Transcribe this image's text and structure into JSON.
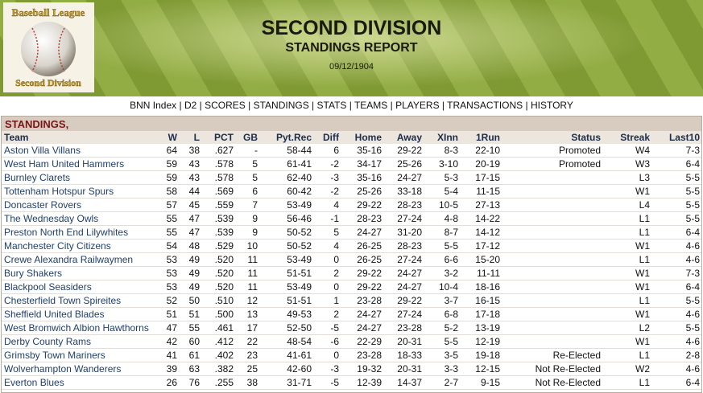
{
  "header": {
    "title": "SECOND DIVISION",
    "subtitle": "STANDINGS REPORT",
    "date": "09/12/1904"
  },
  "logo": {
    "top": "Baseball League",
    "bottom": "Second Division"
  },
  "nav": [
    "BNN Index",
    "D2",
    "SCORES",
    "STANDINGS",
    "STATS",
    "TEAMS",
    "PLAYERS",
    "TRANSACTIONS",
    "HISTORY"
  ],
  "table": {
    "title": "STANDINGS,",
    "columns": [
      "Team",
      "W",
      "L",
      "PCT",
      "GB",
      "Pyt.Rec",
      "Diff",
      "Home",
      "Away",
      "XInn",
      "1Run",
      "Status",
      "Streak",
      "Last10"
    ],
    "rows": [
      [
        "Aston Villa Villans",
        "64",
        "38",
        ".627",
        "-",
        "58-44",
        "6",
        "35-16",
        "29-22",
        "8-3",
        "22-10",
        "Promoted",
        "W4",
        "7-3"
      ],
      [
        "West Ham United Hammers",
        "59",
        "43",
        ".578",
        "5",
        "61-41",
        "-2",
        "34-17",
        "25-26",
        "3-10",
        "20-19",
        "Promoted",
        "W3",
        "6-4"
      ],
      [
        "Burnley Clarets",
        "59",
        "43",
        ".578",
        "5",
        "62-40",
        "-3",
        "35-16",
        "24-27",
        "5-3",
        "17-15",
        null,
        "L3",
        "5-5"
      ],
      [
        "Tottenham Hotspur Spurs",
        "58",
        "44",
        ".569",
        "6",
        "60-42",
        "-2",
        "25-26",
        "33-18",
        "5-4",
        "11-15",
        null,
        "W1",
        "5-5"
      ],
      [
        "Doncaster Rovers",
        "57",
        "45",
        ".559",
        "7",
        "53-49",
        "4",
        "29-22",
        "28-23",
        "10-5",
        "27-13",
        null,
        "L4",
        "5-5"
      ],
      [
        "The Wednesday Owls",
        "55",
        "47",
        ".539",
        "9",
        "56-46",
        "-1",
        "28-23",
        "27-24",
        "4-8",
        "14-22",
        null,
        "L1",
        "5-5"
      ],
      [
        "Preston North End Lilywhites",
        "55",
        "47",
        ".539",
        "9",
        "50-52",
        "5",
        "24-27",
        "31-20",
        "8-7",
        "14-12",
        null,
        "L1",
        "6-4"
      ],
      [
        "Manchester City Citizens",
        "54",
        "48",
        ".529",
        "10",
        "50-52",
        "4",
        "26-25",
        "28-23",
        "5-5",
        "17-12",
        null,
        "W1",
        "4-6"
      ],
      [
        "Crewe Alexandra Railwaymen",
        "53",
        "49",
        ".520",
        "11",
        "53-49",
        "0",
        "26-25",
        "27-24",
        "6-6",
        "15-20",
        null,
        "L1",
        "4-6"
      ],
      [
        "Bury Shakers",
        "53",
        "49",
        ".520",
        "11",
        "51-51",
        "2",
        "29-22",
        "24-27",
        "3-2",
        "11-11",
        null,
        "W1",
        "7-3"
      ],
      [
        "Blackpool Seasiders",
        "53",
        "49",
        ".520",
        "11",
        "53-49",
        "0",
        "29-22",
        "24-27",
        "10-4",
        "18-16",
        null,
        "W1",
        "6-4"
      ],
      [
        "Chesterfield Town Spireites",
        "52",
        "50",
        ".510",
        "12",
        "51-51",
        "1",
        "23-28",
        "29-22",
        "3-7",
        "16-15",
        null,
        "L1",
        "5-5"
      ],
      [
        "Sheffield United Blades",
        "51",
        "51",
        ".500",
        "13",
        "49-53",
        "2",
        "24-27",
        "27-24",
        "6-8",
        "17-18",
        null,
        "W1",
        "4-6"
      ],
      [
        "West Bromwich Albion Hawthorns",
        "47",
        "55",
        ".461",
        "17",
        "52-50",
        "-5",
        "24-27",
        "23-28",
        "5-2",
        "13-19",
        null,
        "L2",
        "5-5"
      ],
      [
        "Derby County Rams",
        "42",
        "60",
        ".412",
        "22",
        "48-54",
        "-6",
        "22-29",
        "20-31",
        "5-5",
        "12-19",
        null,
        "W1",
        "4-6"
      ],
      [
        "Grimsby Town Mariners",
        "41",
        "61",
        ".402",
        "23",
        "41-61",
        "0",
        "23-28",
        "18-33",
        "3-5",
        "19-18",
        "Re-Elected",
        "L1",
        "2-8"
      ],
      [
        "Wolverhampton Wanderers",
        "39",
        "63",
        ".382",
        "25",
        "42-60",
        "-3",
        "19-32",
        "20-31",
        "3-3",
        "12-15",
        "Not Re-Elected",
        "W2",
        "4-6"
      ],
      [
        "Everton Blues",
        "26",
        "76",
        ".255",
        "38",
        "31-71",
        "-5",
        "12-39",
        "14-37",
        "2-7",
        "9-15",
        "Not Re-Elected",
        "L1",
        "6-4"
      ]
    ]
  }
}
